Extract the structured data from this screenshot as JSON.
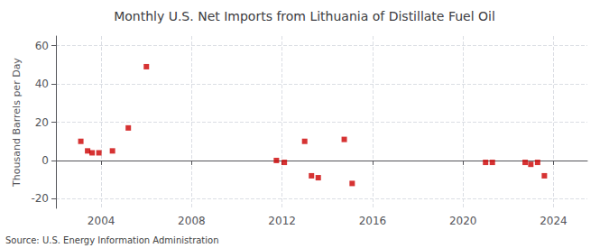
{
  "chart_data": {
    "type": "scatter",
    "title": "Monthly U.S. Net Imports from Lithuania of Distillate Fuel Oil",
    "ylabel": "Thousand Barrels per Day",
    "annotations": [
      "Source: U.S. Energy Information Administration"
    ],
    "x": [
      2003.1,
      2003.4,
      2003.6,
      2003.9,
      2004.5,
      2005.2,
      2006.0,
      2011.75,
      2012.1,
      2013.0,
      2013.3,
      2013.6,
      2014.75,
      2015.1,
      2021.0,
      2021.3,
      2022.75,
      2023.0,
      2023.3,
      2023.6
    ],
    "values": [
      10,
      5,
      4,
      4,
      5,
      17,
      49,
      0,
      -1,
      10,
      -8,
      -9,
      11,
      -12,
      -1,
      -1,
      -1,
      -2,
      -1,
      -8
    ],
    "color": "#cc0000",
    "marker": "square",
    "xlim": [
      2002.0,
      2025.5
    ],
    "ylim": [
      -25,
      65
    ],
    "xticks": [
      2004,
      2008,
      2012,
      2016,
      2020,
      2024
    ],
    "yticks": [
      -20,
      0,
      20,
      40,
      60
    ],
    "grid": true
  }
}
